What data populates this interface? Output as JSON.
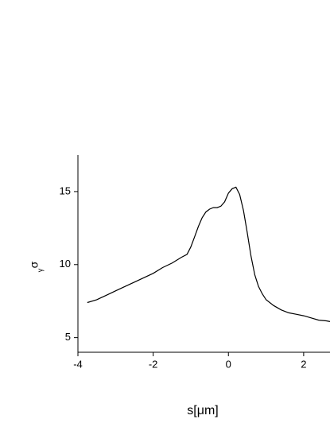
{
  "chart_data": {
    "type": "line",
    "x_label": "s[μm]",
    "y_label": "σ",
    "y_label_sub": "γ",
    "x": [
      -3.75,
      -3.5,
      -3.25,
      -3,
      -2.75,
      -2.5,
      -2.25,
      -2,
      -1.75,
      -1.5,
      -1.25,
      -1.1,
      -1,
      -0.9,
      -0.8,
      -0.7,
      -0.6,
      -0.5,
      -0.4,
      -0.3,
      -0.2,
      -0.1,
      0,
      0.1,
      0.2,
      0.3,
      0.4,
      0.5,
      0.6,
      0.7,
      0.8,
      0.9,
      1,
      1.2,
      1.4,
      1.6,
      1.8,
      2,
      2.2,
      2.4,
      2.6,
      2.7
    ],
    "values": [
      7.4,
      7.6,
      7.9,
      8.2,
      8.5,
      8.8,
      9.1,
      9.4,
      9.8,
      10.1,
      10.5,
      10.7,
      11.2,
      11.9,
      12.6,
      13.2,
      13.6,
      13.8,
      13.9,
      13.9,
      14.0,
      14.3,
      14.9,
      15.2,
      15.3,
      14.8,
      13.7,
      12.2,
      10.6,
      9.3,
      8.5,
      8.0,
      7.6,
      7.2,
      6.9,
      6.7,
      6.6,
      6.5,
      6.35,
      6.2,
      6.15,
      6.1
    ],
    "color": "#000000",
    "xlim": [
      -4,
      2.7
    ],
    "xticks": [
      -4,
      -2,
      0,
      2
    ],
    "ylim": [
      4,
      17.5
    ],
    "yticks": [
      5,
      10,
      15
    ]
  }
}
